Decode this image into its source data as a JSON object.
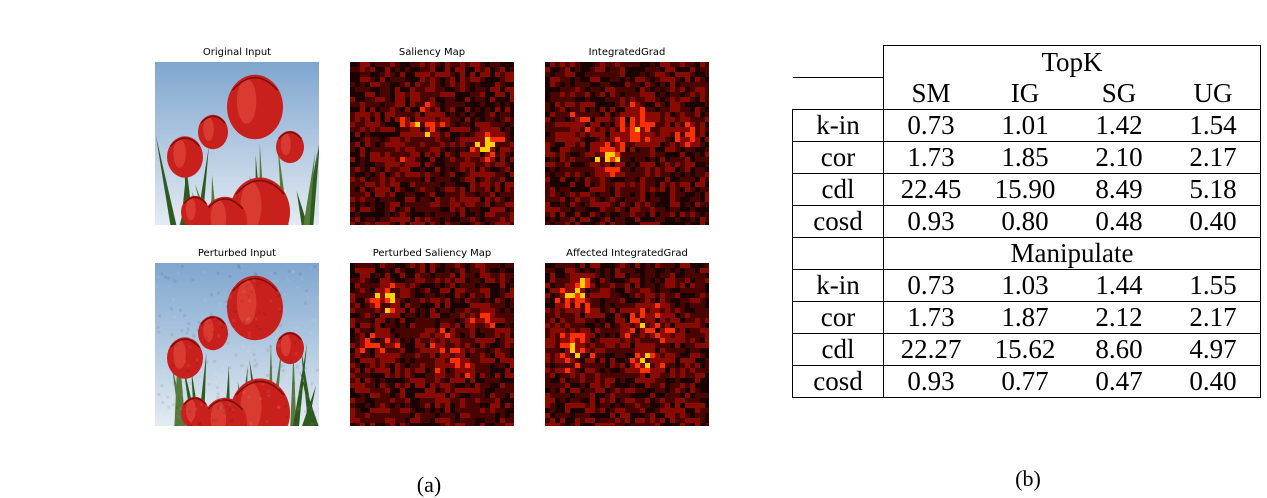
{
  "panel_a": {
    "caption": "(a)",
    "images": [
      {
        "title": "Original Input",
        "kind": "photo"
      },
      {
        "title": "Saliency Map",
        "kind": "heatmap"
      },
      {
        "title": "IntegratedGrad",
        "kind": "heatmap"
      },
      {
        "title": "Perturbed Input",
        "kind": "photo"
      },
      {
        "title": "Perturbed Saliency Map",
        "kind": "heatmap"
      },
      {
        "title": "Affected IntegratedGrad",
        "kind": "heatmap"
      }
    ]
  },
  "panel_b": {
    "caption": "(b)",
    "columns": [
      "SM",
      "IG",
      "SG",
      "UG"
    ],
    "sections": [
      {
        "title": "TopK",
        "rows": [
          {
            "label": "k-in",
            "values": [
              "0.73",
              "1.01",
              "1.42",
              "1.54"
            ]
          },
          {
            "label": "cor",
            "values": [
              "1.73",
              "1.85",
              "2.10",
              "2.17"
            ]
          },
          {
            "label": "cdl",
            "values": [
              "22.45",
              "15.90",
              "8.49",
              "5.18"
            ]
          },
          {
            "label": "cosd",
            "values": [
              "0.93",
              "0.80",
              "0.48",
              "0.40"
            ]
          }
        ]
      },
      {
        "title": "Manipulate",
        "rows": [
          {
            "label": "k-in",
            "values": [
              "0.73",
              "1.03",
              "1.44",
              "1.55"
            ]
          },
          {
            "label": "cor",
            "values": [
              "1.73",
              "1.87",
              "2.12",
              "2.17"
            ]
          },
          {
            "label": "cdl",
            "values": [
              "22.27",
              "15.62",
              "8.60",
              "4.97"
            ]
          },
          {
            "label": "cosd",
            "values": [
              "0.93",
              "0.77",
              "0.47",
              "0.40"
            ]
          }
        ]
      }
    ]
  },
  "colors": {
    "heat_dark": "#1a0000",
    "heat_red": "#8b0a00",
    "heat_bright": "#ff3000",
    "heat_hot": "#ffd000",
    "sky": "#a8c4dc",
    "tulip_red": "#c8201c",
    "leaf_green": "#2e5a22"
  }
}
